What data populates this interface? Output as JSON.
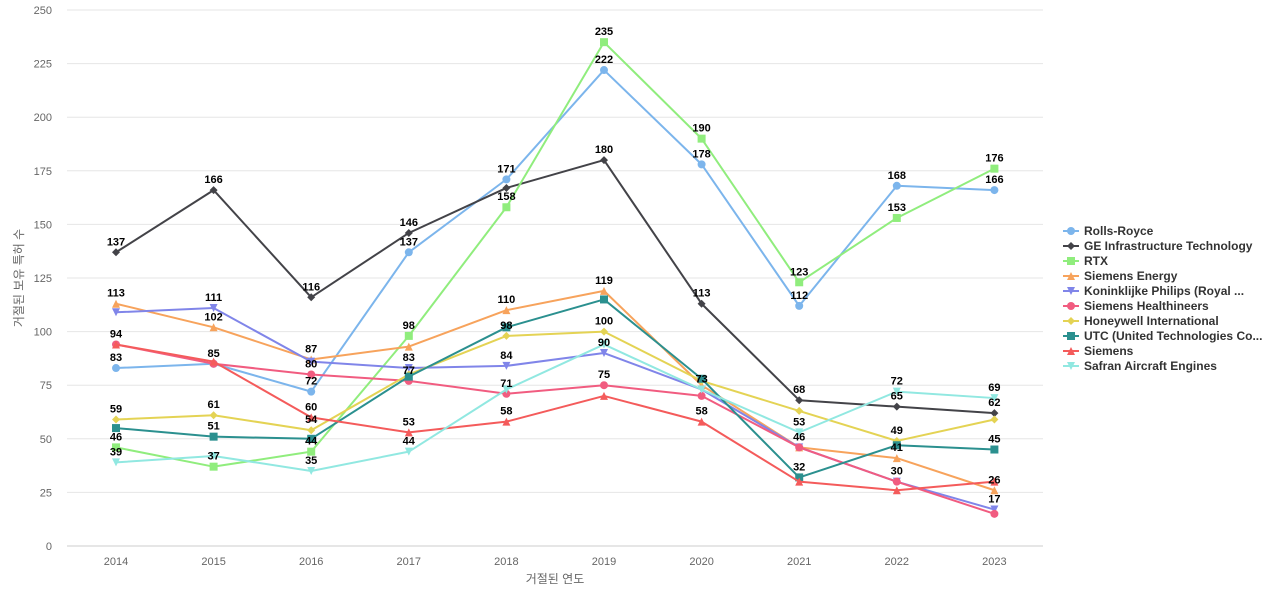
{
  "chart_data": {
    "type": "line",
    "title": "",
    "xlabel": "거절된 연도",
    "ylabel": "거절된 보유 특허 수",
    "x": [
      "2014",
      "2015",
      "2016",
      "2017",
      "2018",
      "2019",
      "2020",
      "2021",
      "2022",
      "2023"
    ],
    "ylim": [
      0,
      250
    ],
    "yticks": [
      0,
      25,
      50,
      75,
      100,
      125,
      150,
      175,
      200,
      225,
      250
    ],
    "grid": true,
    "legend_position": "right",
    "series": [
      {
        "name": "Rolls-Royce",
        "color": "#7cb5ec",
        "marker": "circle",
        "values": [
          83,
          85,
          72,
          137,
          171,
          222,
          178,
          112,
          168,
          166
        ]
      },
      {
        "name": "GE Infrastructure Technology",
        "color": "#434348",
        "marker": "diamond",
        "values": [
          137,
          166,
          116,
          146,
          167,
          180,
          113,
          68,
          65,
          62
        ]
      },
      {
        "name": "RTX",
        "color": "#90ed7d",
        "marker": "square",
        "values": [
          46,
          37,
          44,
          98,
          158,
          235,
          190,
          123,
          153,
          176
        ]
      },
      {
        "name": "Siemens Energy",
        "color": "#f7a35c",
        "marker": "triangle",
        "values": [
          113,
          102,
          87,
          93,
          110,
          119,
          75,
          46,
          41,
          26
        ]
      },
      {
        "name": "Koninklijke Philips (Royal ...",
        "color": "#8085e9",
        "marker": "triangle-down",
        "values": [
          109,
          111,
          86,
          83,
          84,
          90,
          73,
          46,
          30,
          17
        ]
      },
      {
        "name": "Siemens Healthineers",
        "color": "#f15c80",
        "marker": "circle",
        "values": [
          94,
          85,
          80,
          77,
          71,
          75,
          70,
          46,
          30,
          15
        ]
      },
      {
        "name": "Honeywell International",
        "color": "#e4d354",
        "marker": "diamond",
        "values": [
          59,
          61,
          54,
          80,
          98,
          100,
          77,
          63,
          49,
          59
        ]
      },
      {
        "name": "UTC (United Technologies Co...",
        "color": "#2b908f",
        "marker": "square",
        "values": [
          55,
          51,
          50,
          79,
          102,
          115,
          78,
          32,
          47,
          45
        ]
      },
      {
        "name": "Siemens",
        "color": "#f45b5b",
        "marker": "triangle",
        "values": [
          94,
          86,
          60,
          53,
          58,
          70,
          58,
          30,
          26,
          30
        ]
      },
      {
        "name": "Safran Aircraft Engines",
        "color": "#91e8e1",
        "marker": "triangle-down",
        "values": [
          39,
          42,
          35,
          44,
          73,
          94,
          73,
          53,
          72,
          69
        ]
      }
    ],
    "data_labels": [
      {
        "x": "2014",
        "y": 137,
        "text": "137"
      },
      {
        "x": "2014",
        "y": 113,
        "text": "113"
      },
      {
        "x": "2014",
        "y": 94,
        "text": "94"
      },
      {
        "x": "2014",
        "y": 83,
        "text": "83"
      },
      {
        "x": "2014",
        "y": 59,
        "text": "59"
      },
      {
        "x": "2014",
        "y": 46,
        "text": "46"
      },
      {
        "x": "2014",
        "y": 39,
        "text": "39"
      },
      {
        "x": "2015",
        "y": 166,
        "text": "166"
      },
      {
        "x": "2015",
        "y": 111,
        "text": "111"
      },
      {
        "x": "2015",
        "y": 102,
        "text": "102"
      },
      {
        "x": "2015",
        "y": 85,
        "text": "85"
      },
      {
        "x": "2015",
        "y": 61,
        "text": "61"
      },
      {
        "x": "2015",
        "y": 51,
        "text": "51"
      },
      {
        "x": "2015",
        "y": 37,
        "text": "37"
      },
      {
        "x": "2016",
        "y": 116,
        "text": "116"
      },
      {
        "x": "2016",
        "y": 87,
        "text": "87"
      },
      {
        "x": "2016",
        "y": 80,
        "text": "80"
      },
      {
        "x": "2016",
        "y": 72,
        "text": "72"
      },
      {
        "x": "2016",
        "y": 60,
        "text": "60"
      },
      {
        "x": "2016",
        "y": 54,
        "text": "54"
      },
      {
        "x": "2016",
        "y": 44,
        "text": "44"
      },
      {
        "x": "2016",
        "y": 35,
        "text": "35"
      },
      {
        "x": "2017",
        "y": 146,
        "text": "146"
      },
      {
        "x": "2017",
        "y": 137,
        "text": "137"
      },
      {
        "x": "2017",
        "y": 98,
        "text": "98"
      },
      {
        "x": "2017",
        "y": 83,
        "text": "83"
      },
      {
        "x": "2017",
        "y": 77,
        "text": "77"
      },
      {
        "x": "2017",
        "y": 53,
        "text": "53"
      },
      {
        "x": "2017",
        "y": 44,
        "text": "44"
      },
      {
        "x": "2018",
        "y": 171,
        "text": "171"
      },
      {
        "x": "2018",
        "y": 158,
        "text": "158"
      },
      {
        "x": "2018",
        "y": 110,
        "text": "110"
      },
      {
        "x": "2018",
        "y": 98,
        "text": "98"
      },
      {
        "x": "2018",
        "y": 84,
        "text": "84"
      },
      {
        "x": "2018",
        "y": 71,
        "text": "71"
      },
      {
        "x": "2018",
        "y": 58,
        "text": "58"
      },
      {
        "x": "2019",
        "y": 235,
        "text": "235"
      },
      {
        "x": "2019",
        "y": 222,
        "text": "222"
      },
      {
        "x": "2019",
        "y": 180,
        "text": "180"
      },
      {
        "x": "2019",
        "y": 119,
        "text": "119"
      },
      {
        "x": "2019",
        "y": 100,
        "text": "100"
      },
      {
        "x": "2019",
        "y": 90,
        "text": "90"
      },
      {
        "x": "2019",
        "y": 75,
        "text": "75"
      },
      {
        "x": "2020",
        "y": 190,
        "text": "190"
      },
      {
        "x": "2020",
        "y": 178,
        "text": "178"
      },
      {
        "x": "2020",
        "y": 113,
        "text": "113"
      },
      {
        "x": "2020",
        "y": 73,
        "text": "73"
      },
      {
        "x": "2020",
        "y": 58,
        "text": "58"
      },
      {
        "x": "2021",
        "y": 123,
        "text": "123"
      },
      {
        "x": "2021",
        "y": 112,
        "text": "112"
      },
      {
        "x": "2021",
        "y": 68,
        "text": "68"
      },
      {
        "x": "2021",
        "y": 53,
        "text": "53"
      },
      {
        "x": "2021",
        "y": 46,
        "text": "46"
      },
      {
        "x": "2021",
        "y": 32,
        "text": "32"
      },
      {
        "x": "2022",
        "y": 168,
        "text": "168"
      },
      {
        "x": "2022",
        "y": 153,
        "text": "153"
      },
      {
        "x": "2022",
        "y": 72,
        "text": "72"
      },
      {
        "x": "2022",
        "y": 65,
        "text": "65"
      },
      {
        "x": "2022",
        "y": 49,
        "text": "49"
      },
      {
        "x": "2022",
        "y": 41,
        "text": "41"
      },
      {
        "x": "2022",
        "y": 30,
        "text": "30"
      },
      {
        "x": "2023",
        "y": 176,
        "text": "176"
      },
      {
        "x": "2023",
        "y": 166,
        "text": "166"
      },
      {
        "x": "2023",
        "y": 69,
        "text": "69"
      },
      {
        "x": "2023",
        "y": 62,
        "text": "62"
      },
      {
        "x": "2023",
        "y": 45,
        "text": "45"
      },
      {
        "x": "2023",
        "y": 26,
        "text": "26"
      },
      {
        "x": "2023",
        "y": 17,
        "text": "17"
      }
    ]
  }
}
